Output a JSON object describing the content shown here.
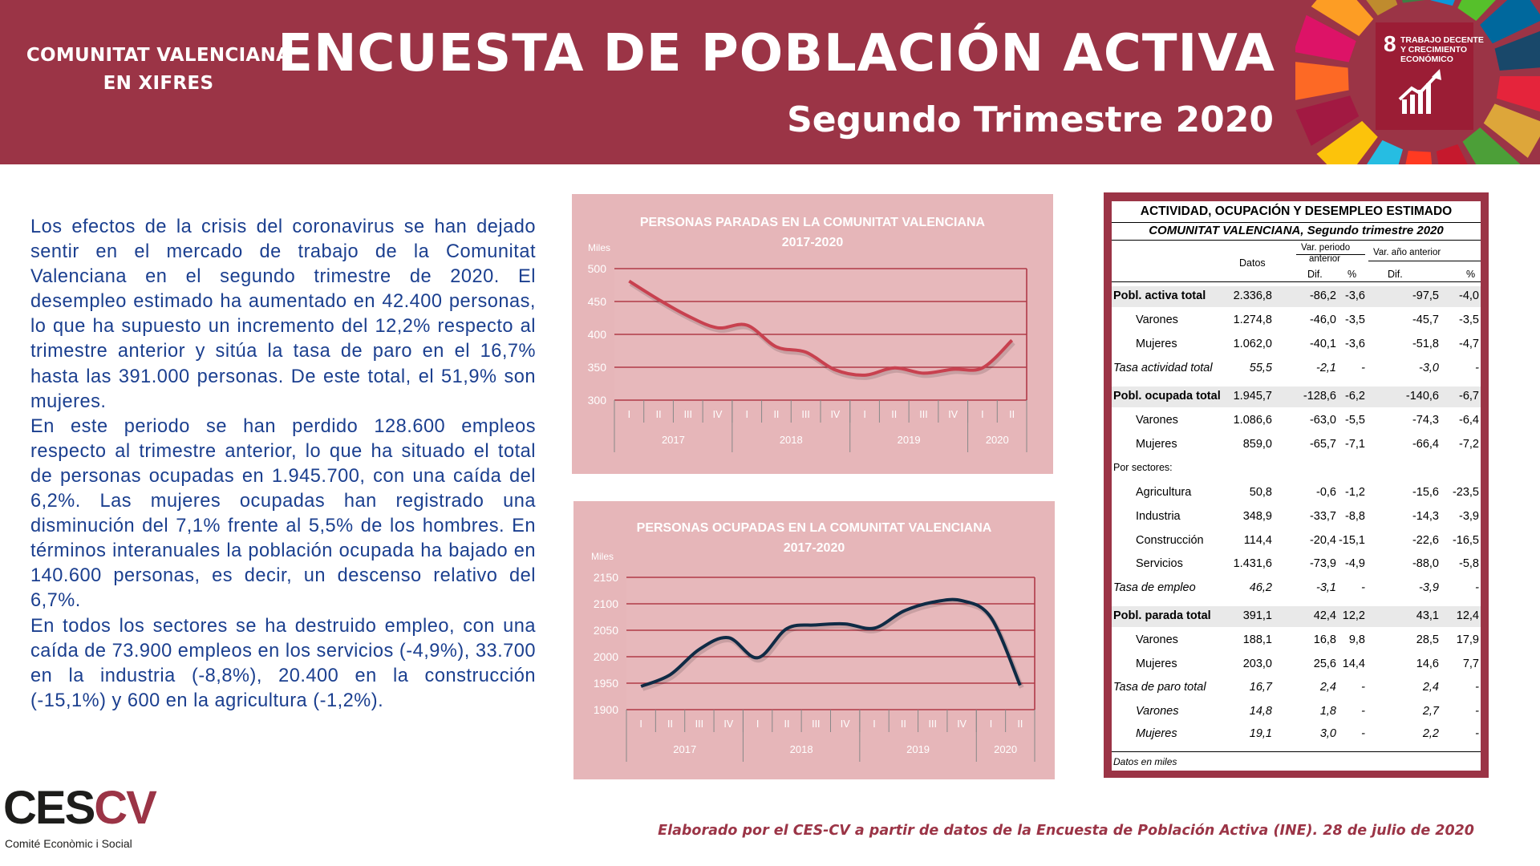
{
  "header": {
    "region_line1": "COMUNITAT VALENCIANA",
    "region_line2": "EN XIFRES",
    "title": "ENCUESTA DE POBLACIÓN ACTIVA",
    "subtitle": "Segundo Trimestre 2020",
    "sdg_number": "8",
    "sdg_line1": "TRABAJO DECENTE",
    "sdg_line2": "Y CRECIMIENTO",
    "sdg_line3": "ECONÓMICO"
  },
  "body": {
    "p1": "Los efectos de la crisis del coronavirus se han dejado sentir en el mercado de trabajo de la Comunitat Valenciana en el segundo trimestre de 2020. El desempleo estimado ha aumentado en 42.400 personas, lo que ha supuesto un incremento del 12,2% respecto al trimestre anterior y sitúa la tasa de paro en el 16,7% hasta las 391.000 personas. De este total, el 51,9% son mujeres.",
    "p2": "En este periodo se han perdido 128.600 empleos respecto al trimestre anterior, lo que ha situado el total de personas ocupadas en 1.945.700, con una caída del 6,2%. Las mujeres ocupadas han registrado una disminución del 7,1% frente al 5,5% de los hombres. En términos interanuales la población ocupada ha bajado en 140.600 personas, es decir, un descenso relativo del 6,7%.",
    "p3": "En todos los sectores se ha destruido empleo, con una caída de 73.900 empleos en los servicios (-4,9%), 33.700 en la industria (-8,8%), 20.400 en la construcción (-15,1%) y 600 en la agricultura (-1,2%)."
  },
  "chart_data": [
    {
      "type": "line",
      "title": "PERSONAS PARADAS EN LA COMUNITAT VALENCIANA 2017-2020",
      "ylabel": "Miles",
      "quarters": [
        "I",
        "II",
        "III",
        "IV",
        "I",
        "II",
        "III",
        "IV",
        "I",
        "II",
        "III",
        "IV",
        "I",
        "II"
      ],
      "years": [
        "2017",
        "2018",
        "2019",
        "2020"
      ],
      "ylim": [
        300,
        500
      ],
      "yticks": [
        "300",
        "350",
        "400",
        "450",
        "500"
      ],
      "grid": true,
      "color": "#c8414f",
      "values": [
        481,
        453,
        428,
        410,
        414,
        381,
        373,
        346,
        338,
        349,
        341,
        347,
        349,
        391
      ]
    },
    {
      "type": "line",
      "title": "PERSONAS OCUPADAS EN LA COMUNITAT VALENCIANA 2017-2020",
      "ylabel": "Miles",
      "quarters": [
        "I",
        "II",
        "III",
        "IV",
        "I",
        "II",
        "III",
        "IV",
        "I",
        "II",
        "III",
        "IV",
        "I",
        "II"
      ],
      "years": [
        "2017",
        "2018",
        "2019",
        "2020"
      ],
      "ylim": [
        1900,
        2150
      ],
      "yticks": [
        "1900",
        "1950",
        "2000",
        "2050",
        "2100",
        "2150"
      ],
      "grid": true,
      "color": "#0f2b45",
      "values": [
        1944,
        1966,
        2014,
        2036,
        1998,
        2053,
        2060,
        2062,
        2054,
        2086,
        2103,
        2106,
        2074,
        1946
      ]
    }
  ],
  "table": {
    "title": "ACTIVIDAD, OCUPACIÓN Y DESEMPLEO ESTIMADO",
    "subtitle": "COMUNITAT  VALENCIANA, Segundo trimestre 2020",
    "h_datos": "Datos",
    "h_var_periodo_1": "Var. periodo",
    "h_var_periodo_2": "anterior",
    "h_var_anio": "Var. año anterior",
    "h_dif": "Dif.",
    "h_pct": "%",
    "footer": "Datos en miles",
    "rows": [
      {
        "label": "Pobl. activa total",
        "datos": "2.336,8",
        "dif1": "-86,2",
        "pct1": "-3,6",
        "dif2": "-97,5",
        "pct2": "-4,0"
      },
      {
        "label": "Varones",
        "datos": "1.274,8",
        "dif1": "-46,0",
        "pct1": "-3,5",
        "dif2": "-45,7",
        "pct2": "-3,5"
      },
      {
        "label": "Mujeres",
        "datos": "1.062,0",
        "dif1": "-40,1",
        "pct1": "-3,6",
        "dif2": "-51,8",
        "pct2": "-4,7"
      },
      {
        "label": "Tasa actividad total",
        "datos": "55,5",
        "dif1": "-2,1",
        "pct1": "-",
        "dif2": "-3,0",
        "pct2": "-"
      },
      {
        "label": "Pobl. ocupada total",
        "datos": "1.945,7",
        "dif1": "-128,6",
        "pct1": "-6,2",
        "dif2": "-140,6",
        "pct2": "-6,7"
      },
      {
        "label": "Varones",
        "datos": "1.086,6",
        "dif1": "-63,0",
        "pct1": "-5,5",
        "dif2": "-74,3",
        "pct2": "-6,4"
      },
      {
        "label": "Mujeres",
        "datos": "859,0",
        "dif1": "-65,7",
        "pct1": "-7,1",
        "dif2": "-66,4",
        "pct2": "-7,2"
      },
      {
        "label": "Por sectores:",
        "datos": "",
        "dif1": "",
        "pct1": "",
        "dif2": "",
        "pct2": ""
      },
      {
        "label": "Agricultura",
        "datos": "50,8",
        "dif1": "-0,6",
        "pct1": "-1,2",
        "dif2": "-15,6",
        "pct2": "-23,5"
      },
      {
        "label": "Industria",
        "datos": "348,9",
        "dif1": "-33,7",
        "pct1": "-8,8",
        "dif2": "-14,3",
        "pct2": "-3,9"
      },
      {
        "label": "Construcción",
        "datos": "114,4",
        "dif1": "-20,4",
        "pct1": "-15,1",
        "dif2": "-22,6",
        "pct2": "-16,5"
      },
      {
        "label": "Servicios",
        "datos": "1.431,6",
        "dif1": "-73,9",
        "pct1": "-4,9",
        "dif2": "-88,0",
        "pct2": "-5,8"
      },
      {
        "label": "Tasa de empleo",
        "datos": "46,2",
        "dif1": "-3,1",
        "pct1": "-",
        "dif2": "-3,9",
        "pct2": "-"
      },
      {
        "label": "Pobl. parada total",
        "datos": "391,1",
        "dif1": "42,4",
        "pct1": "12,2",
        "dif2": "43,1",
        "pct2": "12,4"
      },
      {
        "label": "Varones",
        "datos": "188,1",
        "dif1": "16,8",
        "pct1": "9,8",
        "dif2": "28,5",
        "pct2": "17,9"
      },
      {
        "label": "Mujeres",
        "datos": "203,0",
        "dif1": "25,6",
        "pct1": "14,4",
        "dif2": "14,6",
        "pct2": "7,7"
      },
      {
        "label": "Tasa de paro total",
        "datos": "16,7",
        "dif1": "2,4",
        "pct1": "-",
        "dif2": "2,4",
        "pct2": "-"
      },
      {
        "label": "Varones",
        "datos": "14,8",
        "dif1": "1,8",
        "pct1": "-",
        "dif2": "2,7",
        "pct2": "-"
      },
      {
        "label": "Mujeres",
        "datos": "19,1",
        "dif1": "3,0",
        "pct1": "-",
        "dif2": "2,2",
        "pct2": "-"
      }
    ]
  },
  "logo": {
    "part1": "CES",
    "part2": "CV",
    "tagline": "Comité Econòmic i Social"
  },
  "footer": {
    "source": "Elaborado por el CES-CV a partir de datos de la Encuesta de Población Activa (INE). 28 de julio de 2020"
  }
}
